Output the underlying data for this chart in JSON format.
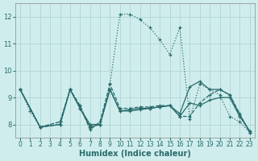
{
  "xlabel": "Humidex (Indice chaleur)",
  "bg_color": "#d0eded",
  "grid_color": "#b0d4d4",
  "line_color": "#2a6b6b",
  "xlim": [
    -0.5,
    23.5
  ],
  "ylim": [
    7.5,
    12.5
  ],
  "xticks": [
    0,
    1,
    2,
    3,
    4,
    5,
    6,
    7,
    8,
    9,
    10,
    11,
    12,
    13,
    14,
    15,
    16,
    17,
    18,
    19,
    20,
    21,
    22,
    23
  ],
  "yticks": [
    8,
    9,
    10,
    11,
    12
  ],
  "series": [
    {
      "linestyle": ":",
      "x": [
        0,
        1,
        2,
        4,
        5,
        6,
        7,
        8,
        9,
        10,
        11,
        12,
        13,
        14,
        15,
        16,
        17,
        18,
        19,
        20,
        21,
        22,
        23
      ],
      "y": [
        9.3,
        8.5,
        7.9,
        8.1,
        9.3,
        8.7,
        7.9,
        8.0,
        9.5,
        12.1,
        12.1,
        11.9,
        11.6,
        11.15,
        10.6,
        11.6,
        8.2,
        9.5,
        9.3,
        9.1,
        8.3,
        8.1,
        7.7
      ]
    },
    {
      "linestyle": "--",
      "x": [
        0,
        2,
        4,
        5,
        6,
        7,
        8,
        9,
        10,
        11,
        12,
        13,
        14,
        15,
        16,
        17,
        18,
        19,
        20,
        21,
        22,
        23
      ],
      "y": [
        9.3,
        7.9,
        8.1,
        9.3,
        8.7,
        7.8,
        8.1,
        9.5,
        8.6,
        8.6,
        8.65,
        8.65,
        8.7,
        8.7,
        8.3,
        8.3,
        8.8,
        9.1,
        9.3,
        9.1,
        8.4,
        7.7
      ]
    },
    {
      "linestyle": "-",
      "x": [
        0,
        2,
        4,
        5,
        6,
        7,
        8,
        9,
        10,
        11,
        12,
        13,
        14,
        15,
        16,
        17,
        18,
        19,
        20,
        21,
        22,
        23
      ],
      "y": [
        9.3,
        7.9,
        8.0,
        9.3,
        8.6,
        8.0,
        8.0,
        9.3,
        8.5,
        8.55,
        8.6,
        8.6,
        8.65,
        8.7,
        8.4,
        9.4,
        9.6,
        9.3,
        9.3,
        9.1,
        8.35,
        7.75
      ]
    },
    {
      "linestyle": "-",
      "x": [
        0,
        2,
        4,
        5,
        6,
        7,
        8,
        9,
        10,
        11,
        12,
        13,
        14,
        15,
        16,
        17,
        18,
        19,
        20,
        21,
        22,
        23
      ],
      "y": [
        9.3,
        7.9,
        8.0,
        9.3,
        8.6,
        7.9,
        8.0,
        9.3,
        8.5,
        8.5,
        8.55,
        8.6,
        8.65,
        8.7,
        8.3,
        8.8,
        8.7,
        8.9,
        9.0,
        9.0,
        8.3,
        7.75
      ]
    }
  ]
}
